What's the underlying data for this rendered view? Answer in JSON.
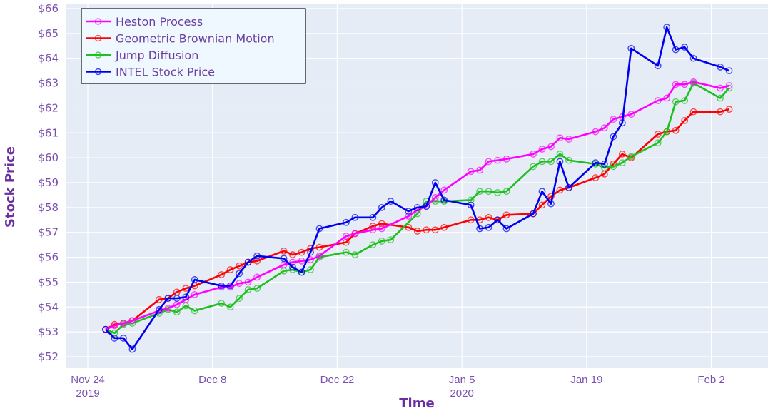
{
  "chart_data": {
    "type": "line",
    "title": "",
    "xlabel": "Time",
    "ylabel": "Stock Price",
    "ylim": [
      51.6,
      66.2
    ],
    "xlim": [
      "2019-11-22",
      "2020-02-07"
    ],
    "grid": true,
    "legend_position": "top-left",
    "y_ticks": [
      "$52",
      "$53",
      "$54",
      "$55",
      "$56",
      "$57",
      "$58",
      "$59",
      "$60",
      "$61",
      "$62",
      "$63",
      "$64",
      "$65",
      "$66"
    ],
    "y_tick_values": [
      52,
      53,
      54,
      55,
      56,
      57,
      58,
      59,
      60,
      61,
      62,
      63,
      64,
      65,
      66
    ],
    "x_ticks": [
      {
        "date": "2019-11-24",
        "label": "Nov 24",
        "sub": "2019"
      },
      {
        "date": "2019-12-08",
        "label": "Dec 8",
        "sub": ""
      },
      {
        "date": "2019-12-22",
        "label": "Dec 22",
        "sub": ""
      },
      {
        "date": "2020-01-05",
        "label": "Jan 5",
        "sub": "2020"
      },
      {
        "date": "2020-01-19",
        "label": "Jan 19",
        "sub": ""
      },
      {
        "date": "2020-02-02",
        "label": "Feb 2",
        "sub": ""
      }
    ],
    "series": [
      {
        "name": "Heston Process",
        "color": "#ff00ff",
        "points": [
          [
            "2019-11-26",
            53.1
          ],
          [
            "2019-11-27",
            53.25
          ],
          [
            "2019-11-28",
            53.35
          ],
          [
            "2019-11-29",
            53.45
          ],
          [
            "2019-12-02",
            53.85
          ],
          [
            "2019-12-03",
            53.95
          ],
          [
            "2019-12-04",
            54.1
          ],
          [
            "2019-12-05",
            54.3
          ],
          [
            "2019-12-06",
            54.5
          ],
          [
            "2019-12-09",
            54.8
          ],
          [
            "2019-12-10",
            54.8
          ],
          [
            "2019-12-11",
            54.95
          ],
          [
            "2019-12-12",
            55.0
          ],
          [
            "2019-12-13",
            55.2
          ],
          [
            "2019-12-16",
            55.7
          ],
          [
            "2019-12-17",
            55.8
          ],
          [
            "2019-12-18",
            55.85
          ],
          [
            "2019-12-19",
            55.9
          ],
          [
            "2019-12-20",
            56.05
          ],
          [
            "2019-12-23",
            56.85
          ],
          [
            "2019-12-24",
            56.95
          ],
          [
            "2019-12-26",
            57.1
          ],
          [
            "2019-12-27",
            57.15
          ],
          [
            "2019-12-30",
            57.65
          ],
          [
            "2019-12-31",
            57.9
          ],
          [
            "2020-01-01",
            58.05
          ],
          [
            "2020-01-02",
            58.4
          ],
          [
            "2020-01-03",
            58.7
          ],
          [
            "2020-01-06",
            59.45
          ],
          [
            "2020-01-07",
            59.5
          ],
          [
            "2020-01-08",
            59.85
          ],
          [
            "2020-01-09",
            59.9
          ],
          [
            "2020-01-10",
            59.95
          ],
          [
            "2020-01-13",
            60.15
          ],
          [
            "2020-01-14",
            60.35
          ],
          [
            "2020-01-15",
            60.45
          ],
          [
            "2020-01-16",
            60.8
          ],
          [
            "2020-01-17",
            60.75
          ],
          [
            "2020-01-20",
            61.05
          ],
          [
            "2020-01-21",
            61.2
          ],
          [
            "2020-01-22",
            61.55
          ],
          [
            "2020-01-23",
            61.65
          ],
          [
            "2020-01-24",
            61.75
          ],
          [
            "2020-01-27",
            62.3
          ],
          [
            "2020-01-28",
            62.4
          ],
          [
            "2020-01-29",
            62.95
          ],
          [
            "2020-01-30",
            62.95
          ],
          [
            "2020-01-31",
            63.05
          ],
          [
            "2020-02-03",
            62.8
          ],
          [
            "2020-02-04",
            62.9
          ]
        ]
      },
      {
        "name": "Geometric Brownian Motion",
        "color": "#ff0000",
        "points": [
          [
            "2019-11-26",
            53.1
          ],
          [
            "2019-11-27",
            53.3
          ],
          [
            "2019-11-28",
            53.35
          ],
          [
            "2019-11-29",
            53.45
          ],
          [
            "2019-12-02",
            54.3
          ],
          [
            "2019-12-03",
            54.35
          ],
          [
            "2019-12-04",
            54.6
          ],
          [
            "2019-12-05",
            54.75
          ],
          [
            "2019-12-06",
            54.85
          ],
          [
            "2019-12-09",
            55.3
          ],
          [
            "2019-12-10",
            55.5
          ],
          [
            "2019-12-11",
            55.65
          ],
          [
            "2019-12-12",
            55.8
          ],
          [
            "2019-12-13",
            55.85
          ],
          [
            "2019-12-16",
            56.25
          ],
          [
            "2019-12-17",
            56.1
          ],
          [
            "2019-12-18",
            56.2
          ],
          [
            "2019-12-19",
            56.35
          ],
          [
            "2019-12-20",
            56.4
          ],
          [
            "2019-12-23",
            56.6
          ],
          [
            "2019-12-24",
            56.95
          ],
          [
            "2019-12-26",
            57.25
          ],
          [
            "2019-12-27",
            57.35
          ],
          [
            "2019-12-30",
            57.2
          ],
          [
            "2019-12-31",
            57.05
          ],
          [
            "2020-01-01",
            57.1
          ],
          [
            "2020-01-02",
            57.1
          ],
          [
            "2020-01-03",
            57.2
          ],
          [
            "2020-01-06",
            57.5
          ],
          [
            "2020-01-07",
            57.5
          ],
          [
            "2020-01-08",
            57.6
          ],
          [
            "2020-01-09",
            57.5
          ],
          [
            "2020-01-10",
            57.7
          ],
          [
            "2020-01-13",
            57.75
          ],
          [
            "2020-01-14",
            58.1
          ],
          [
            "2020-01-15",
            58.45
          ],
          [
            "2020-01-16",
            58.7
          ],
          [
            "2020-01-17",
            58.8
          ],
          [
            "2020-01-20",
            59.2
          ],
          [
            "2020-01-21",
            59.35
          ],
          [
            "2020-01-22",
            59.75
          ],
          [
            "2020-01-23",
            60.15
          ],
          [
            "2020-01-24",
            60.0
          ],
          [
            "2020-01-27",
            60.95
          ],
          [
            "2020-01-28",
            61.05
          ],
          [
            "2020-01-29",
            61.1
          ],
          [
            "2020-01-30",
            61.5
          ],
          [
            "2020-01-31",
            61.85
          ],
          [
            "2020-02-03",
            61.85
          ],
          [
            "2020-02-04",
            61.95
          ]
        ]
      },
      {
        "name": "Jump Diffusion",
        "color": "#1fbf1f",
        "points": [
          [
            "2019-11-26",
            53.1
          ],
          [
            "2019-11-27",
            52.95
          ],
          [
            "2019-11-28",
            53.3
          ],
          [
            "2019-11-29",
            53.35
          ],
          [
            "2019-12-02",
            53.75
          ],
          [
            "2019-12-03",
            53.9
          ],
          [
            "2019-12-04",
            53.8
          ],
          [
            "2019-12-05",
            54.05
          ],
          [
            "2019-12-06",
            53.85
          ],
          [
            "2019-12-09",
            54.15
          ],
          [
            "2019-12-10",
            54.0
          ],
          [
            "2019-12-11",
            54.35
          ],
          [
            "2019-12-12",
            54.7
          ],
          [
            "2019-12-13",
            54.75
          ],
          [
            "2019-12-16",
            55.45
          ],
          [
            "2019-12-17",
            55.5
          ],
          [
            "2019-12-18",
            55.4
          ],
          [
            "2019-12-19",
            55.5
          ],
          [
            "2019-12-20",
            56.0
          ],
          [
            "2019-12-23",
            56.2
          ],
          [
            "2019-12-24",
            56.1
          ],
          [
            "2019-12-26",
            56.5
          ],
          [
            "2019-12-27",
            56.65
          ],
          [
            "2019-12-28",
            56.7
          ],
          [
            "2019-12-31",
            57.75
          ],
          [
            "2020-01-01",
            58.25
          ],
          [
            "2020-01-02",
            58.25
          ],
          [
            "2020-01-03",
            58.25
          ],
          [
            "2020-01-06",
            58.3
          ],
          [
            "2020-01-07",
            58.65
          ],
          [
            "2020-01-08",
            58.65
          ],
          [
            "2020-01-09",
            58.6
          ],
          [
            "2020-01-10",
            58.65
          ],
          [
            "2020-01-13",
            59.65
          ],
          [
            "2020-01-14",
            59.85
          ],
          [
            "2020-01-15",
            59.85
          ],
          [
            "2020-01-16",
            60.15
          ],
          [
            "2020-01-17",
            59.9
          ],
          [
            "2020-01-20",
            59.75
          ],
          [
            "2020-01-21",
            59.6
          ],
          [
            "2020-01-22",
            59.65
          ],
          [
            "2020-01-23",
            59.8
          ],
          [
            "2020-01-24",
            60.05
          ],
          [
            "2020-01-27",
            60.6
          ],
          [
            "2020-01-28",
            61.05
          ],
          [
            "2020-01-29",
            62.25
          ],
          [
            "2020-01-30",
            62.3
          ],
          [
            "2020-01-31",
            63.0
          ],
          [
            "2020-02-03",
            62.4
          ],
          [
            "2020-02-04",
            62.8
          ]
        ]
      },
      {
        "name": "INTEL Stock Price",
        "color": "#0000ee",
        "points": [
          [
            "2019-11-26",
            53.1
          ],
          [
            "2019-11-27",
            52.75
          ],
          [
            "2019-11-28",
            52.75
          ],
          [
            "2019-11-29",
            52.3
          ],
          [
            "2019-12-02",
            53.9
          ],
          [
            "2019-12-03",
            54.35
          ],
          [
            "2019-12-04",
            54.35
          ],
          [
            "2019-12-05",
            54.4
          ],
          [
            "2019-12-06",
            55.1
          ],
          [
            "2019-12-09",
            54.85
          ],
          [
            "2019-12-10",
            54.85
          ],
          [
            "2019-12-11",
            55.35
          ],
          [
            "2019-12-12",
            55.8
          ],
          [
            "2019-12-13",
            56.05
          ],
          [
            "2019-12-16",
            55.95
          ],
          [
            "2019-12-17",
            55.6
          ],
          [
            "2019-12-18",
            55.4
          ],
          [
            "2019-12-19",
            56.2
          ],
          [
            "2019-12-20",
            57.15
          ],
          [
            "2019-12-23",
            57.4
          ],
          [
            "2019-12-24",
            57.6
          ],
          [
            "2019-12-26",
            57.6
          ],
          [
            "2019-12-27",
            58.0
          ],
          [
            "2019-12-28",
            58.25
          ],
          [
            "2019-12-30",
            57.85
          ],
          [
            "2019-12-31",
            58.0
          ],
          [
            "2020-01-01",
            58.05
          ],
          [
            "2020-01-02",
            59.0
          ],
          [
            "2020-01-03",
            58.3
          ],
          [
            "2020-01-06",
            58.1
          ],
          [
            "2020-01-07",
            57.15
          ],
          [
            "2020-01-08",
            57.2
          ],
          [
            "2020-01-09",
            57.5
          ],
          [
            "2020-01-10",
            57.15
          ],
          [
            "2020-01-13",
            57.75
          ],
          [
            "2020-01-14",
            58.65
          ],
          [
            "2020-01-15",
            58.15
          ],
          [
            "2020-01-16",
            59.85
          ],
          [
            "2020-01-17",
            58.8
          ],
          [
            "2020-01-20",
            59.8
          ],
          [
            "2020-01-21",
            59.75
          ],
          [
            "2020-01-22",
            60.85
          ],
          [
            "2020-01-23",
            61.4
          ],
          [
            "2020-01-24",
            64.4
          ],
          [
            "2020-01-27",
            63.7
          ],
          [
            "2020-01-28",
            65.25
          ],
          [
            "2020-01-29",
            64.35
          ],
          [
            "2020-01-30",
            64.45
          ],
          [
            "2020-01-31",
            64.0
          ],
          [
            "2020-02-03",
            63.65
          ],
          [
            "2020-02-04",
            63.5
          ]
        ]
      }
    ]
  },
  "style": {
    "plot_bg": "#e5ecf6",
    "paper_bg": "#ffffff",
    "grid_color": "#ffffff",
    "text_color": "#7a4fb0",
    "title_color": "#6a2fa0",
    "legend_bg": "#f0f8ff",
    "legend_border": "#222222"
  }
}
